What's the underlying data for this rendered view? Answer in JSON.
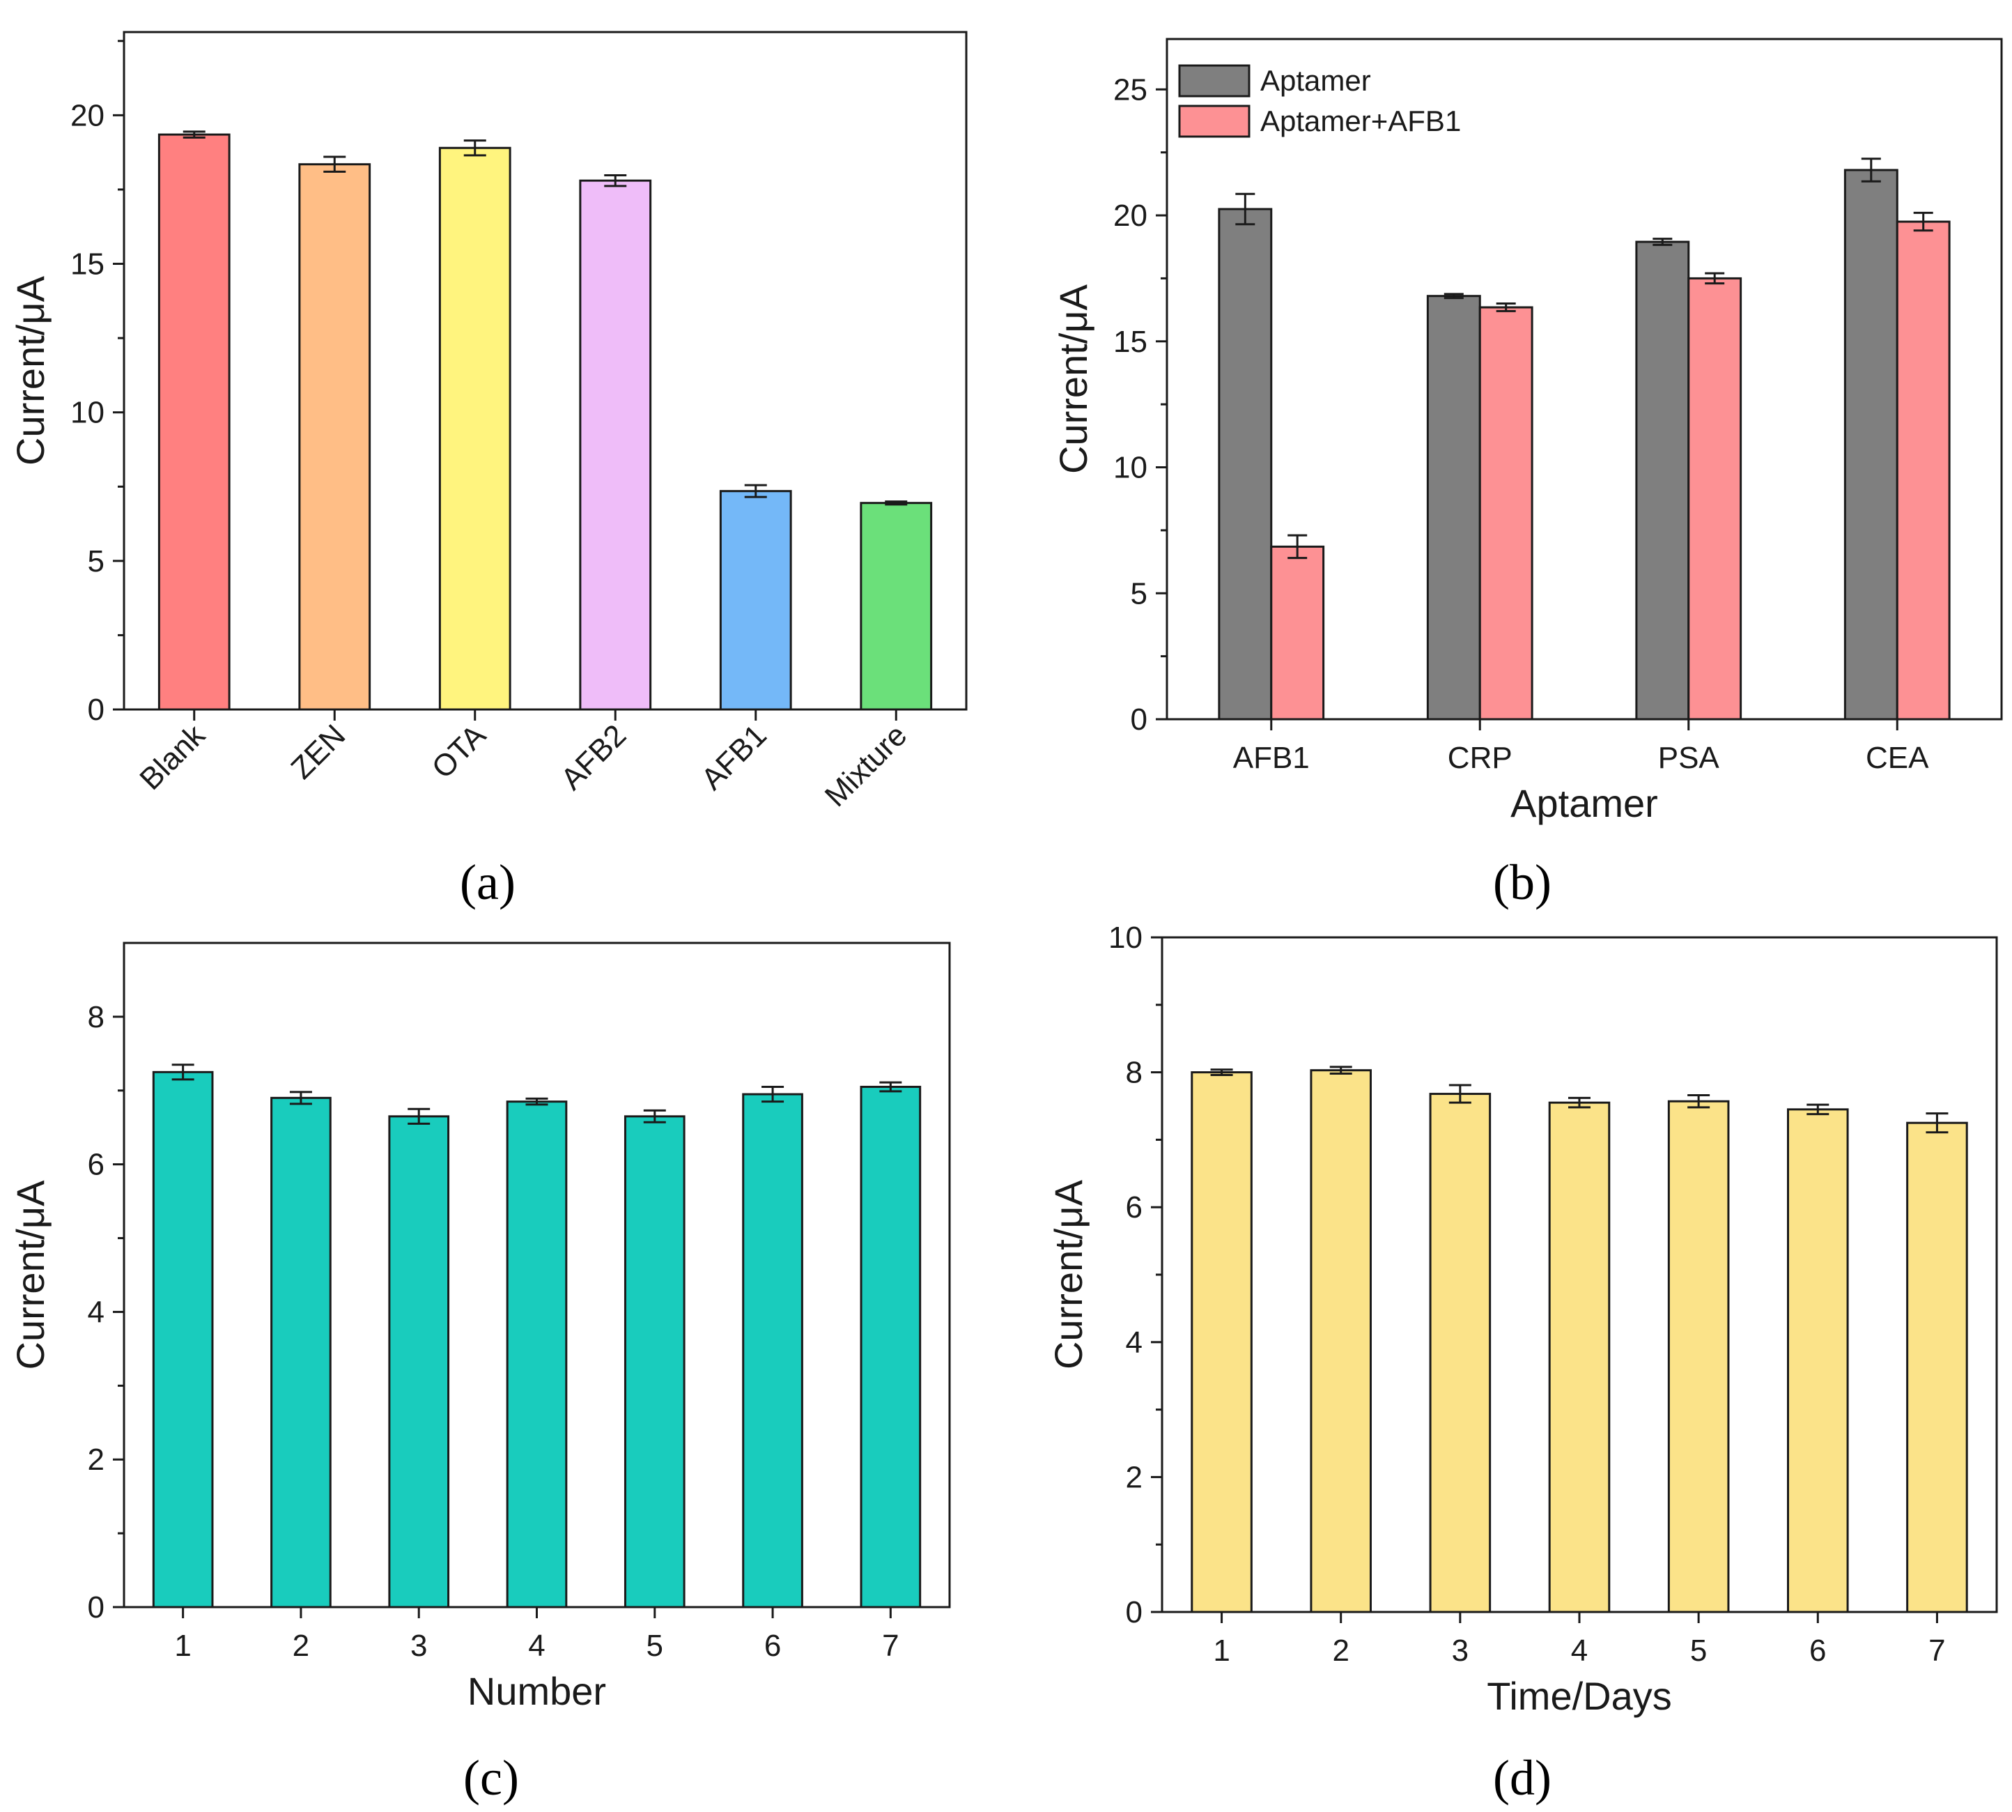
{
  "panel_labels": [
    "(a)",
    "(b)",
    "(c)",
    "(d)"
  ],
  "chart_data": [
    {
      "id": "a",
      "type": "bar",
      "title": "",
      "categories": [
        "Blank",
        "ZEN",
        "OTA",
        "AFB2",
        "AFB1",
        "Mixture"
      ],
      "values": [
        19.35,
        18.35,
        18.9,
        17.8,
        7.35,
        6.95
      ],
      "errors": [
        0.1,
        0.25,
        0.25,
        0.18,
        0.2,
        0.05
      ],
      "colors": [
        "#ff8080",
        "#ffbe86",
        "#fff47e",
        "#efbdf9",
        "#74b8f8",
        "#6be07a"
      ],
      "xlabel": "",
      "ylabel": "Current/μA",
      "ylim": [
        0,
        22.8
      ],
      "yticks": [
        0,
        5,
        10,
        15,
        20
      ],
      "rotate_x_labels": true
    },
    {
      "id": "b",
      "type": "bar",
      "title": "",
      "categories": [
        "AFB1",
        "CRP",
        "PSA",
        "CEA"
      ],
      "series": [
        {
          "name": "Aptamer",
          "color": "#7f7f7f",
          "values": [
            20.25,
            16.8,
            18.95,
            21.8
          ],
          "errors": [
            0.6,
            0.08,
            0.12,
            0.45
          ]
        },
        {
          "name": "Aptamer+AFB1",
          "color": "#fd9194",
          "values": [
            6.85,
            16.35,
            17.5,
            19.75
          ],
          "errors": [
            0.45,
            0.15,
            0.2,
            0.35
          ]
        }
      ],
      "xlabel": "Aptamer",
      "ylabel": "Current/μA",
      "ylim": [
        0,
        27
      ],
      "yticks": [
        0,
        5,
        10,
        15,
        20,
        25
      ],
      "legend": "top-left"
    },
    {
      "id": "c",
      "type": "bar",
      "title": "",
      "categories": [
        "1",
        "2",
        "3",
        "4",
        "5",
        "6",
        "7"
      ],
      "values": [
        7.25,
        6.9,
        6.65,
        6.85,
        6.65,
        6.95,
        7.05
      ],
      "errors": [
        0.1,
        0.08,
        0.1,
        0.04,
        0.08,
        0.1,
        0.06
      ],
      "colors": [
        "#19ccbd"
      ],
      "xlabel": "Number",
      "ylabel": "Current/μA",
      "ylim": [
        0,
        9.0
      ],
      "yticks": [
        0,
        2,
        4,
        6,
        8
      ]
    },
    {
      "id": "d",
      "type": "bar",
      "title": "",
      "categories": [
        "1",
        "2",
        "3",
        "4",
        "5",
        "6",
        "7"
      ],
      "values": [
        8.0,
        8.03,
        7.68,
        7.55,
        7.57,
        7.45,
        7.25
      ],
      "errors": [
        0.04,
        0.05,
        0.13,
        0.07,
        0.09,
        0.07,
        0.14
      ],
      "colors": [
        "#fbe389"
      ],
      "xlabel": "Time/Days",
      "ylabel": "Current/μA",
      "ylim": [
        0,
        10
      ],
      "yticks": [
        0,
        2,
        4,
        6,
        8,
        10
      ]
    }
  ]
}
